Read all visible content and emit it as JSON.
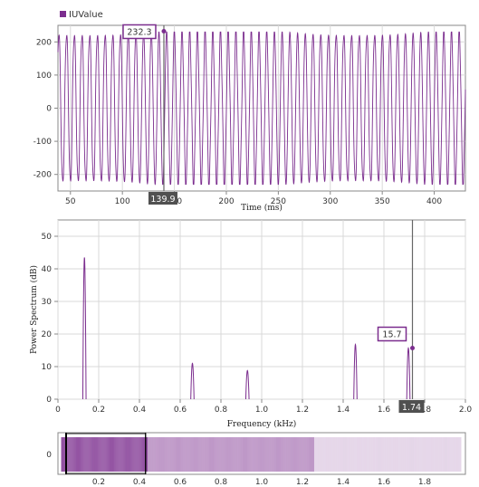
{
  "chart_data": [
    {
      "type": "line",
      "legend": "IUValue",
      "legend_color": "#7b2d8e",
      "xlabel": "Time (ms)",
      "ylabel": "",
      "xlim": [
        38,
        430
      ],
      "ylim": [
        -250,
        250
      ],
      "xticks": [
        "50",
        "100",
        "150",
        "200",
        "250",
        "300",
        "350",
        "400"
      ],
      "yticks": [
        "200",
        "100",
        "0",
        "-100",
        "-200"
      ],
      "series": [
        {
          "name": "IUValue",
          "amplitude": 230,
          "frequency_hz": 135,
          "units": "ms"
        }
      ],
      "cursor": {
        "x": 139.9,
        "y": 232.3,
        "x_label": "139.9",
        "y_label": "232.3"
      },
      "grid": true,
      "legend_position": "top-left"
    },
    {
      "type": "line",
      "xlabel": "Frequency (kHz)",
      "ylabel": "Power Spectrum (dB)",
      "xlim": [
        0,
        2.0
      ],
      "ylim": [
        0,
        55
      ],
      "xticks": [
        "0",
        "0.2",
        "0.4",
        "0.6",
        "0.8",
        "1.0",
        "1.2",
        "1.4",
        "1.6",
        "1.8",
        "2.0"
      ],
      "yticks": [
        "50",
        "40",
        "30",
        "20",
        "10",
        "0"
      ],
      "peaks": [
        {
          "x": 0.13,
          "y": 43.5
        },
        {
          "x": 0.66,
          "y": 11.0
        },
        {
          "x": 0.93,
          "y": 8.8
        },
        {
          "x": 1.46,
          "y": 16.8
        },
        {
          "x": 1.72,
          "y": 15.7
        }
      ],
      "cursor": {
        "x": 1.74,
        "y": 15.7,
        "x_label": "1.74",
        "y_label": "15.7"
      },
      "grid": true
    },
    {
      "type": "area",
      "role": "overview-navigator",
      "xlim": [
        0,
        2.0
      ],
      "xticks": [
        "0.2",
        "0.4",
        "0.6",
        "0.8",
        "1.0",
        "1.2",
        "1.4",
        "1.6",
        "1.8"
      ],
      "yticks": [
        "0"
      ],
      "selection": [
        0.04,
        0.43
      ]
    }
  ],
  "colors": {
    "series": "#7b2d8e",
    "grid": "#d9d9d9",
    "cursor_tag_bg": "#505050",
    "cursor_tag_text": "#ffffff",
    "value_box_border": "#7b2d8e"
  }
}
